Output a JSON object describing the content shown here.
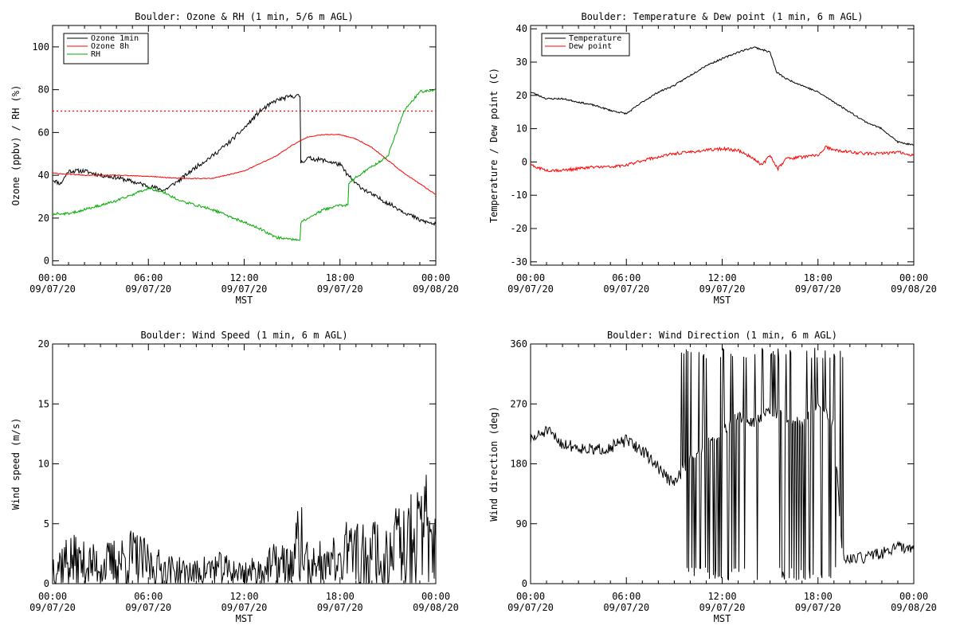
{
  "chart_data": [
    {
      "type": "line",
      "title": "Boulder: Ozone & RH (1 min, 5/6 m AGL)",
      "ylabel": "Ozone (ppbv) / RH (%)",
      "xlabel": "MST",
      "xlim": [
        "09/07/20 00:00",
        "09/08/20 00:00"
      ],
      "ylim": [
        -2,
        110
      ],
      "y_ticks": [
        "0",
        "20",
        "40",
        "60",
        "80",
        "100"
      ],
      "x_ticks": [
        {
          "time": "00:00",
          "date": "09/07/20"
        },
        {
          "time": "06:00",
          "date": "09/07/20"
        },
        {
          "time": "12:00",
          "date": "09/07/20"
        },
        {
          "time": "18:00",
          "date": "09/07/20"
        },
        {
          "time": "00:00",
          "date": "09/08/20"
        }
      ],
      "legend_position": "top-left",
      "reference_line": {
        "value": 70,
        "style": "dotted",
        "color": "#ff0000"
      },
      "series": [
        {
          "name": "Ozone 1min",
          "color": "#000000",
          "x_hours": [
            0,
            0.5,
            1,
            2,
            3,
            4,
            5,
            6,
            7,
            8,
            9,
            10,
            11,
            12,
            13,
            14,
            15,
            15.5,
            15.55,
            16,
            17,
            18,
            18.5,
            19,
            20,
            21,
            22,
            23,
            24
          ],
          "values": [
            38,
            36,
            42,
            42,
            40,
            39,
            37,
            35,
            33,
            38,
            44,
            49,
            55,
            62,
            70,
            75,
            77,
            77,
            46,
            48,
            47,
            45,
            40,
            36,
            31,
            27,
            23,
            19,
            17
          ]
        },
        {
          "name": "Ozone 8h",
          "color": "#ff0000",
          "x_hours": [
            0,
            2,
            4,
            6,
            8,
            10,
            12,
            14,
            15,
            16,
            17,
            18,
            19,
            20,
            21,
            22,
            23,
            24
          ],
          "values": [
            41,
            40,
            40,
            39.5,
            38.5,
            38.5,
            42,
            49,
            54,
            58,
            59,
            59,
            57,
            53,
            47,
            41,
            36,
            31
          ]
        },
        {
          "name": "RH",
          "color": "#00aa00",
          "x_hours": [
            0,
            1,
            2,
            3,
            4,
            5,
            6,
            7,
            8,
            9,
            10,
            11,
            12,
            13,
            14,
            15,
            15.5,
            15.55,
            16,
            17,
            18,
            18.5,
            18.55,
            19,
            20,
            21,
            22,
            23,
            24
          ],
          "values": [
            22,
            22,
            24,
            26,
            28,
            31,
            34,
            32,
            28,
            26,
            24,
            21,
            18,
            15,
            11,
            10,
            10,
            18,
            20,
            24,
            26,
            26,
            36,
            39,
            44,
            49,
            70,
            79,
            80
          ]
        }
      ]
    },
    {
      "type": "line",
      "title": "Boulder: Temperature & Dew point (1 min, 6 m AGL)",
      "ylabel": "Temperature / Dew point (C)",
      "xlabel": "MST",
      "xlim": [
        "09/07/20 00:00",
        "09/08/20 00:00"
      ],
      "ylim": [
        -31,
        41
      ],
      "y_ticks": [
        "-30",
        "-20",
        "-10",
        "0",
        "10",
        "20",
        "30",
        "40"
      ],
      "x_ticks": [
        {
          "time": "00:00",
          "date": "09/07/20"
        },
        {
          "time": "06:00",
          "date": "09/07/20"
        },
        {
          "time": "12:00",
          "date": "09/07/20"
        },
        {
          "time": "18:00",
          "date": "09/07/20"
        },
        {
          "time": "00:00",
          "date": "09/08/20"
        }
      ],
      "legend_position": "top-left",
      "series": [
        {
          "name": "Temperature",
          "color": "#000000",
          "x_hours": [
            0,
            1,
            2,
            3,
            4,
            5,
            6,
            7,
            8,
            9,
            10,
            11,
            12,
            13,
            14,
            15,
            15.4,
            16,
            17,
            18,
            19,
            20,
            21,
            22,
            23,
            24
          ],
          "values": [
            21,
            19,
            19,
            18,
            17,
            15.5,
            14.5,
            18,
            21,
            23,
            26,
            29,
            31,
            33,
            34.5,
            33,
            27,
            25,
            23,
            21,
            18,
            15,
            12,
            10,
            6,
            5
          ]
        },
        {
          "name": "Dew point",
          "color": "#ff0000",
          "x_hours": [
            0,
            1,
            2,
            3,
            4,
            5,
            6,
            7,
            8,
            9,
            10,
            11,
            12,
            13,
            14,
            14.5,
            15,
            15.5,
            16,
            17,
            18,
            18.5,
            19,
            20,
            21,
            22,
            23,
            24
          ],
          "values": [
            -1,
            -2.5,
            -2.5,
            -2,
            -1.5,
            -1.5,
            -1,
            0.5,
            1.5,
            2.5,
            3,
            3.5,
            4,
            3.5,
            1,
            -1,
            2,
            -2,
            1,
            1.5,
            2,
            4.5,
            3.5,
            3,
            2.5,
            2.5,
            3,
            2
          ]
        }
      ]
    },
    {
      "type": "line",
      "title": "Boulder: Wind Speed (1 min, 6 m AGL)",
      "ylabel": "Wind speed (m/s)",
      "xlabel": "MST",
      "xlim": [
        "09/07/20 00:00",
        "09/08/20 00:00"
      ],
      "ylim": [
        0,
        20
      ],
      "y_ticks": [
        "0",
        "5",
        "10",
        "15",
        "20"
      ],
      "x_ticks": [
        {
          "time": "00:00",
          "date": "09/07/20"
        },
        {
          "time": "06:00",
          "date": "09/07/20"
        },
        {
          "time": "12:00",
          "date": "09/07/20"
        },
        {
          "time": "18:00",
          "date": "09/07/20"
        },
        {
          "time": "00:00",
          "date": "09/08/20"
        }
      ],
      "series": [
        {
          "name": "",
          "color": "#000000",
          "x_hours": [
            0,
            1,
            2,
            3,
            4,
            5,
            6,
            7,
            8,
            9,
            10,
            11,
            12,
            13,
            14,
            15,
            15.5,
            16,
            17,
            18,
            19,
            20,
            21,
            22,
            23,
            24
          ],
          "values": [
            1.5,
            2.0,
            1.6,
            1.5,
            1.8,
            2.2,
            1.6,
            1.2,
            1.0,
            0.9,
            1.3,
            1.1,
            0.9,
            1.1,
            1.6,
            1.5,
            3.5,
            1.4,
            1.3,
            2.0,
            2.4,
            2.8,
            2.9,
            3.4,
            4.0,
            3.0
          ]
        }
      ]
    },
    {
      "type": "line",
      "title": "Boulder: Wind Direction (1 min, 6 m AGL)",
      "ylabel": "Wind direction (deg)",
      "xlabel": "MST",
      "xlim": [
        "09/07/20 00:00",
        "09/08/20 00:00"
      ],
      "ylim": [
        0,
        360
      ],
      "y_ticks": [
        "0",
        "90",
        "180",
        "270",
        "360"
      ],
      "x_ticks": [
        {
          "time": "00:00",
          "date": "09/07/20"
        },
        {
          "time": "06:00",
          "date": "09/07/20"
        },
        {
          "time": "12:00",
          "date": "09/07/20"
        },
        {
          "time": "18:00",
          "date": "09/07/20"
        },
        {
          "time": "00:00",
          "date": "09/08/20"
        }
      ],
      "series": [
        {
          "name": "",
          "color": "#000000",
          "x_hours": [
            0,
            1,
            2,
            3,
            4,
            5,
            6,
            7,
            8,
            8.5,
            9,
            10,
            11,
            12,
            13,
            14,
            15,
            16,
            17,
            18,
            19,
            19.5,
            20,
            21,
            22,
            23,
            24
          ],
          "values": [
            215,
            230,
            210,
            205,
            200,
            205,
            215,
            200,
            175,
            160,
            150,
            190,
            210,
            230,
            250,
            240,
            260,
            250,
            240,
            270,
            240,
            45,
            35,
            40,
            45,
            55,
            50
          ]
        }
      ]
    }
  ]
}
